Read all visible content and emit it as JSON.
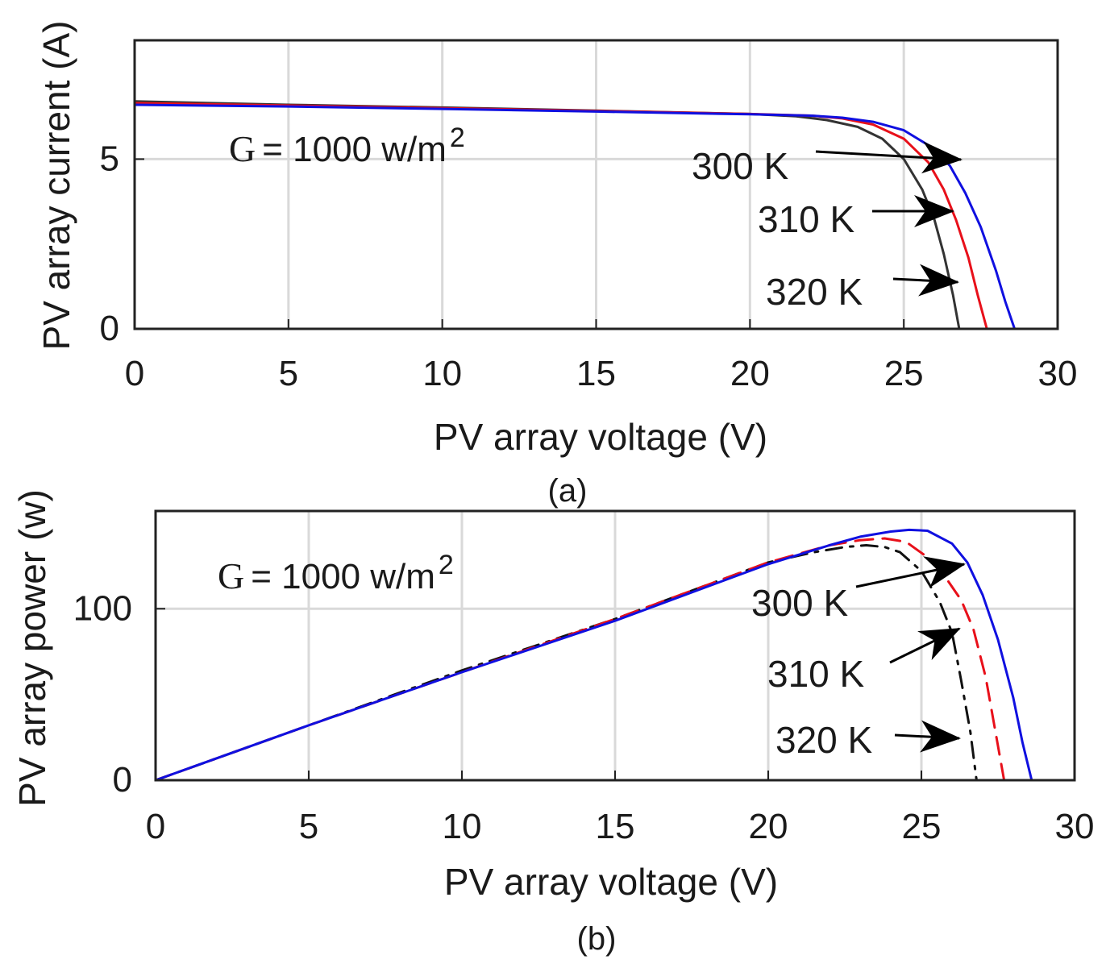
{
  "chart_data": [
    {
      "type": "line",
      "panel": "a",
      "caption": "(a)",
      "xlabel": "PV array voltage (V)",
      "ylabel": "PV array current (A)",
      "xlim": [
        0,
        30
      ],
      "ylim": [
        0,
        8.5
      ],
      "xticks": [
        "0",
        "5",
        "10",
        "15",
        "20",
        "25",
        "30"
      ],
      "yticks": [
        "0",
        "5"
      ],
      "grid": true,
      "annotation": {
        "g_letter": "G",
        "g_rest": "= 1000 w/m",
        "g_sup": "2"
      },
      "series": [
        {
          "name": "300 K",
          "label": "300 K",
          "color": "#1010e0",
          "style": "solid",
          "x": [
            0,
            5,
            10,
            15,
            20,
            22,
            23,
            24,
            25,
            26,
            26.5,
            27,
            27.5,
            28,
            28.3,
            28.6
          ],
          "y": [
            6.6,
            6.55,
            6.48,
            6.4,
            6.32,
            6.28,
            6.22,
            6.1,
            5.85,
            5.3,
            4.8,
            4.0,
            3.0,
            1.7,
            0.8,
            0
          ]
        },
        {
          "name": "310 K",
          "label": "310 K",
          "color": "#e8101a",
          "style": "solid",
          "x": [
            0,
            5,
            10,
            15,
            20,
            22,
            23,
            24,
            25,
            25.8,
            26.3,
            26.7,
            27.1,
            27.4,
            27.7
          ],
          "y": [
            6.65,
            6.58,
            6.5,
            6.42,
            6.33,
            6.28,
            6.2,
            6.02,
            5.6,
            4.9,
            4.1,
            3.2,
            2.1,
            1.0,
            0
          ]
        },
        {
          "name": "320 K",
          "label": "320 K",
          "color": "#333333",
          "style": "solid",
          "x": [
            0,
            5,
            10,
            15,
            20,
            21.5,
            22.5,
            23.5,
            24.3,
            25,
            25.6,
            26,
            26.3,
            26.6,
            26.8
          ],
          "y": [
            6.7,
            6.6,
            6.52,
            6.43,
            6.33,
            6.26,
            6.15,
            5.95,
            5.6,
            5.0,
            4.1,
            3.2,
            2.2,
            1.0,
            0
          ]
        }
      ]
    },
    {
      "type": "line",
      "panel": "b",
      "caption": "(b)",
      "xlabel": "PV array voltage (V)",
      "ylabel": "PV array power (w)",
      "xlim": [
        0,
        30
      ],
      "ylim": [
        0,
        157
      ],
      "xticks": [
        "0",
        "5",
        "10",
        "15",
        "20",
        "25",
        "30"
      ],
      "yticks": [
        "0",
        "100"
      ],
      "grid": true,
      "annotation": {
        "g_letter": "G",
        "g_rest": "= 1000 w/m",
        "g_sup": "2"
      },
      "series": [
        {
          "name": "300 K",
          "label": "300 K",
          "color": "#1010e0",
          "style": "solid",
          "x": [
            0,
            5,
            10,
            15,
            20,
            22,
            23,
            24,
            24.6,
            25.2,
            26,
            26.5,
            27,
            27.5,
            28,
            28.3,
            28.6
          ],
          "y": [
            0,
            32,
            63,
            93,
            126,
            137,
            142,
            145,
            146,
            145.5,
            138,
            127,
            108,
            82,
            48,
            22,
            0
          ]
        },
        {
          "name": "310 K",
          "label": "310 K",
          "color": "#e8101a",
          "style": "dashed",
          "x": [
            0,
            5,
            10,
            15,
            20,
            22,
            23,
            23.8,
            24.5,
            25.2,
            25.8,
            26.3,
            26.7,
            27.1,
            27.4,
            27.7
          ],
          "y": [
            0,
            32,
            63,
            94,
            127,
            137,
            140,
            141,
            139,
            130,
            118,
            105,
            88,
            60,
            30,
            0
          ]
        },
        {
          "name": "320 K",
          "label": "320 K",
          "color": "#111111",
          "style": "dashdot",
          "x": [
            0,
            5,
            10,
            15,
            20,
            21.5,
            22.5,
            23.2,
            23.8,
            24.3,
            25,
            25.6,
            26,
            26.3,
            26.6,
            26.8
          ],
          "y": [
            0,
            32,
            64,
            94,
            127,
            133,
            136,
            137,
            136,
            133,
            122,
            104,
            86,
            58,
            28,
            0
          ]
        }
      ]
    }
  ]
}
